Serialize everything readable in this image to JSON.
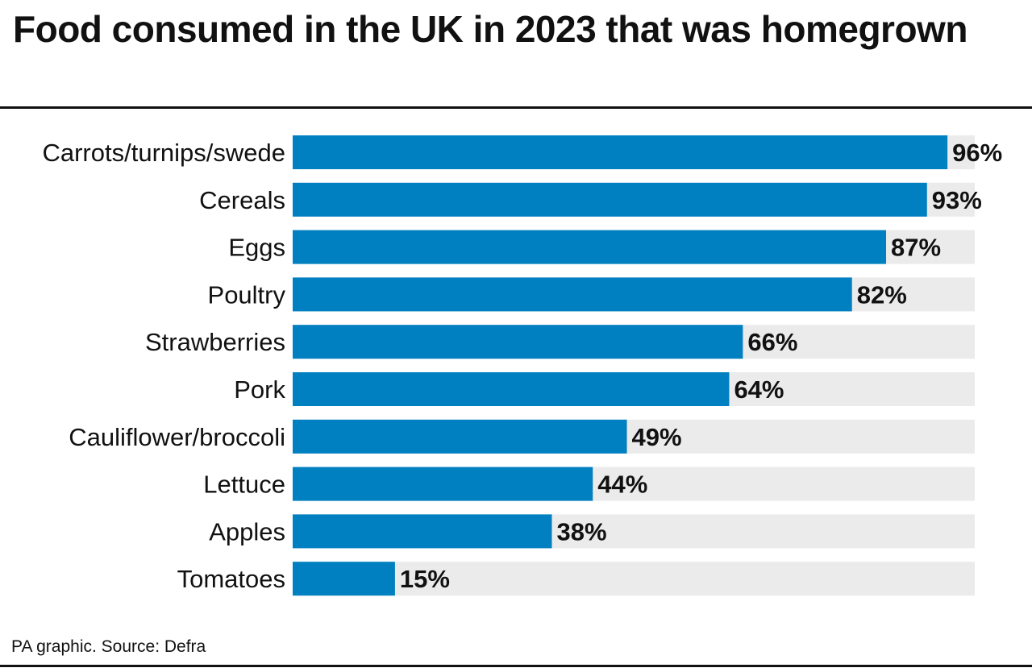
{
  "chart_data": {
    "type": "bar",
    "orientation": "horizontal",
    "title": "Food consumed in the UK in 2023 that was homegrown",
    "categories": [
      "Carrots/turnips/swede",
      "Cereals",
      "Eggs",
      "Poultry",
      "Strawberries",
      "Pork",
      "Cauliflower/broccoli",
      "Lettuce",
      "Apples",
      "Tomatoes"
    ],
    "values": [
      96,
      93,
      87,
      82,
      66,
      64,
      49,
      44,
      38,
      15
    ],
    "value_labels": [
      "96%",
      "93%",
      "87%",
      "82%",
      "66%",
      "64%",
      "49%",
      "44%",
      "38%",
      "15%"
    ],
    "xlim": [
      0,
      100
    ],
    "grid": false,
    "colors": {
      "bar": "#0080c0",
      "track": "#ebebeb"
    }
  },
  "source": "PA graphic. Source: Defra"
}
